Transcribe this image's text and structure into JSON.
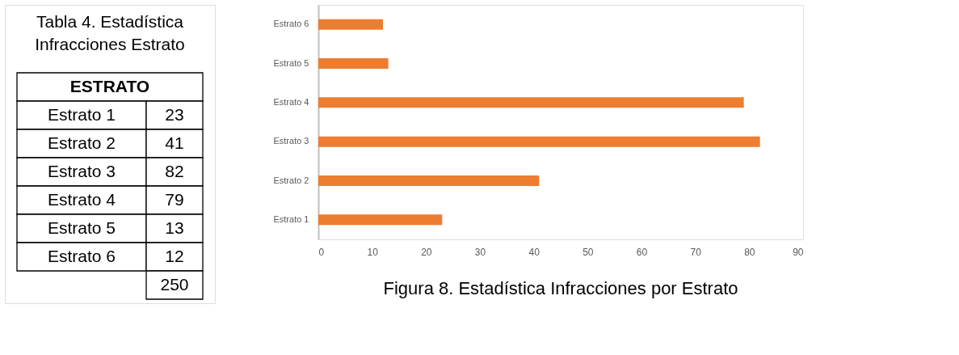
{
  "chart_data": [
    {
      "type": "other",
      "title": "Tabla 4. Estadística Infracciones Estrato",
      "categories": [
        "Estrato 1",
        "Estrato 2",
        "Estrato 3",
        "Estrato 4",
        "Estrato 5",
        "Estrato 6"
      ],
      "values": [
        23,
        41,
        82,
        79,
        13,
        12
      ],
      "data_labels": true,
      "annotations": [
        "ESTRATO",
        "250"
      ]
    },
    {
      "type": "bar",
      "orientation": "horizontal",
      "title": "Figura 8. Estadística Infracciones por Estrato",
      "categories": [
        "Estrato 6",
        "Estrato 5",
        "Estrato 4",
        "Estrato 3",
        "Estrato 2",
        "Estrato 1"
      ],
      "values": [
        12,
        13,
        79,
        82,
        41,
        23
      ],
      "color": "#ed7d31",
      "xlim": [
        0,
        90
      ],
      "xticks": [
        0,
        10,
        20,
        30,
        40,
        50,
        60,
        70,
        80,
        90
      ],
      "grid": false
    }
  ]
}
